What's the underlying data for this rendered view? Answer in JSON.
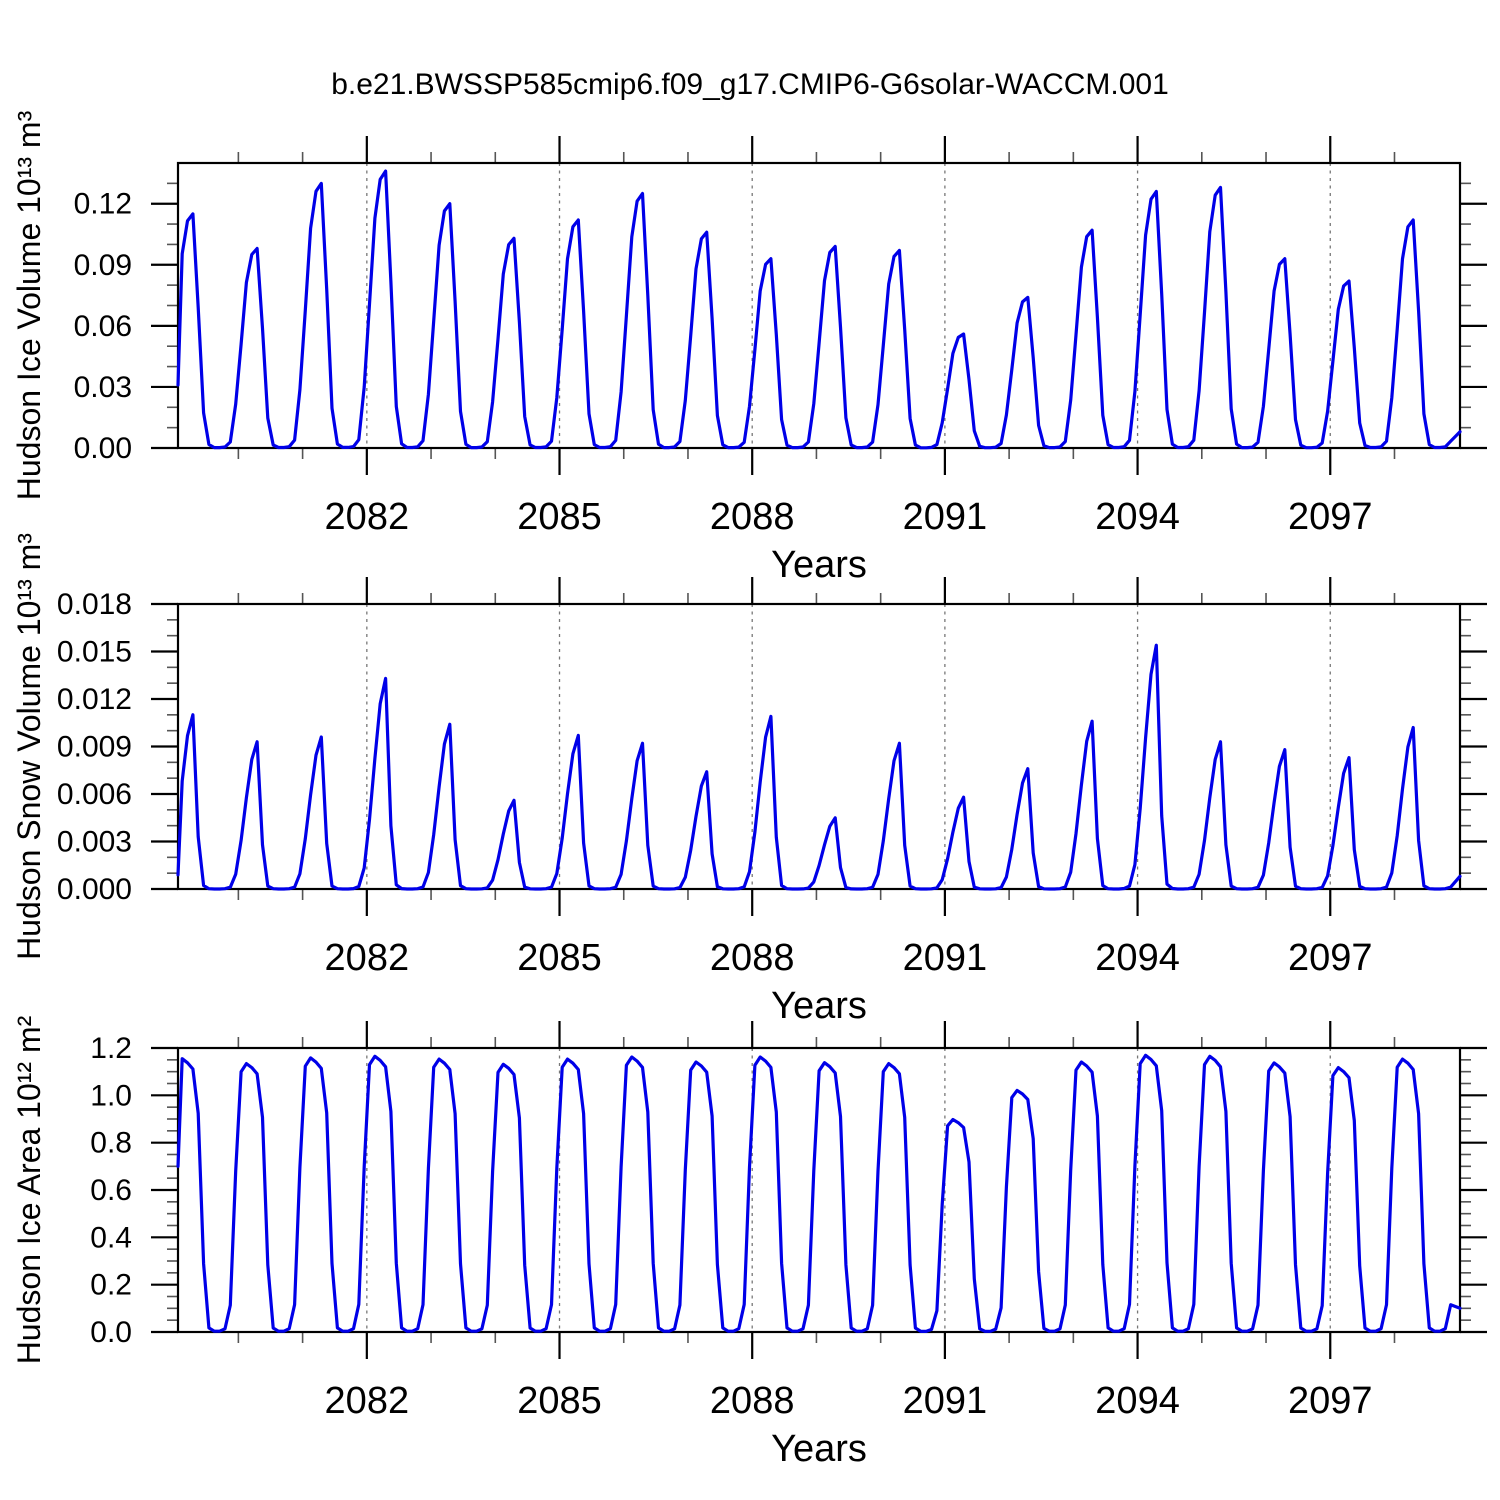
{
  "title": "b.e21.BWSSP585cmip6.f09_g17.CMIP6-G6solar-WACCM.001",
  "colors": {
    "line": "#0000e8",
    "grid": "#777777",
    "frame": "#000000",
    "minor_tick": "#555555"
  },
  "chart_data": [
    {
      "type": "line",
      "ylabel": "Hudson Ice Volume 10¹³ m³",
      "xlabel": "Years",
      "x_range": [
        2079.06,
        2099.02
      ],
      "y_range": [
        0,
        0.14
      ],
      "x_major_ticks": [
        2082,
        2085,
        2088,
        2091,
        2094,
        2097
      ],
      "x_tick_labels": [
        "2082",
        "2085",
        "2088",
        "2091",
        "2094",
        "2097"
      ],
      "x_minor_step_years": 1,
      "y_tick_values": [
        0,
        0.03,
        0.06,
        0.09,
        0.12
      ],
      "y_tick_labels": [
        "0.00",
        "0.03",
        "0.06",
        "0.09",
        "0.12"
      ],
      "y_major_step": 0.03,
      "y_minor_step": 0.01,
      "grid": "vertical-dashed",
      "legend": "none",
      "years": [
        2079,
        2080,
        2081,
        2082,
        2083,
        2084,
        2085,
        2086,
        2087,
        2088,
        2089,
        2090,
        2091,
        2092,
        2093,
        2094,
        2095,
        2096,
        2097,
        2098
      ],
      "annual_peaks": [
        0.115,
        0.098,
        0.13,
        0.136,
        0.12,
        0.103,
        0.112,
        0.125,
        0.106,
        0.093,
        0.099,
        0.097,
        0.056,
        0.074,
        0.107,
        0.126,
        0.128,
        0.093,
        0.082,
        0.112
      ],
      "seasonal_profile_aug_jul": [
        0.002,
        0.002,
        0.005,
        0.03,
        0.22,
        0.52,
        0.83,
        0.97,
        1.0,
        0.6,
        0.15,
        0.015
      ],
      "edge_values": {
        "start": 0.031,
        "end": 0.008
      }
    },
    {
      "type": "line",
      "ylabel": "Hudson Snow Volume 10¹³ m³",
      "xlabel": "Years",
      "x_range": [
        2079.06,
        2099.02
      ],
      "y_range": [
        0,
        0.018
      ],
      "x_major_ticks": [
        2082,
        2085,
        2088,
        2091,
        2094,
        2097
      ],
      "x_tick_labels": [
        "2082",
        "2085",
        "2088",
        "2091",
        "2094",
        "2097"
      ],
      "x_minor_step_years": 1,
      "y_tick_values": [
        0,
        0.003,
        0.006,
        0.009,
        0.012,
        0.015,
        0.018
      ],
      "y_tick_labels": [
        "0.000",
        "0.003",
        "0.006",
        "0.009",
        "0.012",
        "0.015",
        "0.018"
      ],
      "y_major_step": 0.003,
      "y_minor_step": 0.001,
      "grid": "vertical-dashed",
      "legend": "none",
      "years": [
        2079,
        2080,
        2081,
        2082,
        2083,
        2084,
        2085,
        2086,
        2087,
        2088,
        2089,
        2090,
        2091,
        2092,
        2093,
        2094,
        2095,
        2096,
        2097,
        2098
      ],
      "annual_peaks": [
        0.011,
        0.0093,
        0.0096,
        0.0133,
        0.0104,
        0.0056,
        0.0097,
        0.0092,
        0.0074,
        0.0109,
        0.0045,
        0.0092,
        0.0058,
        0.0076,
        0.0106,
        0.0154,
        0.0093,
        0.0088,
        0.0083,
        0.0102
      ],
      "seasonal_profile_aug_jul": [
        0.0,
        0.0,
        0.002,
        0.012,
        0.1,
        0.33,
        0.62,
        0.88,
        1.0,
        0.3,
        0.02,
        0.002
      ],
      "edge_values": {
        "start": 0.0009,
        "end": 0.0008
      }
    },
    {
      "type": "line",
      "ylabel": "Hudson Ice Area 10¹² m²",
      "xlabel": "Years",
      "x_range": [
        2079.06,
        2099.02
      ],
      "y_range": [
        0,
        1.2
      ],
      "x_major_ticks": [
        2082,
        2085,
        2088,
        2091,
        2094,
        2097
      ],
      "x_tick_labels": [
        "2082",
        "2085",
        "2088",
        "2091",
        "2094",
        "2097"
      ],
      "x_minor_step_years": 1,
      "y_tick_values": [
        0,
        0.2,
        0.4,
        0.6,
        0.8,
        1.0,
        1.2
      ],
      "y_tick_labels": [
        "0.0",
        "0.2",
        "0.4",
        "0.6",
        "0.8",
        "1.0",
        "1.2"
      ],
      "y_major_step": 0.2,
      "y_minor_step": 0.05,
      "grid": "vertical-dashed",
      "legend": "none",
      "years": [
        2079,
        2080,
        2081,
        2082,
        2083,
        2084,
        2085,
        2086,
        2087,
        2088,
        2089,
        2090,
        2091,
        2092,
        2093,
        2094,
        2095,
        2096,
        2097,
        2098
      ],
      "annual_peaks": [
        1.155,
        1.134,
        1.158,
        1.165,
        1.153,
        1.131,
        1.153,
        1.162,
        1.141,
        1.162,
        1.138,
        1.134,
        0.898,
        1.021,
        1.141,
        1.169,
        1.165,
        1.137,
        1.117,
        1.153
      ],
      "seasonal_profile_aug_jul": [
        0.003,
        0.003,
        0.012,
        0.1,
        0.6,
        0.97,
        1.0,
        0.985,
        0.962,
        0.8,
        0.25,
        0.015
      ],
      "edge_values": {
        "start": 0.7,
        "end": 0.1
      }
    }
  ]
}
